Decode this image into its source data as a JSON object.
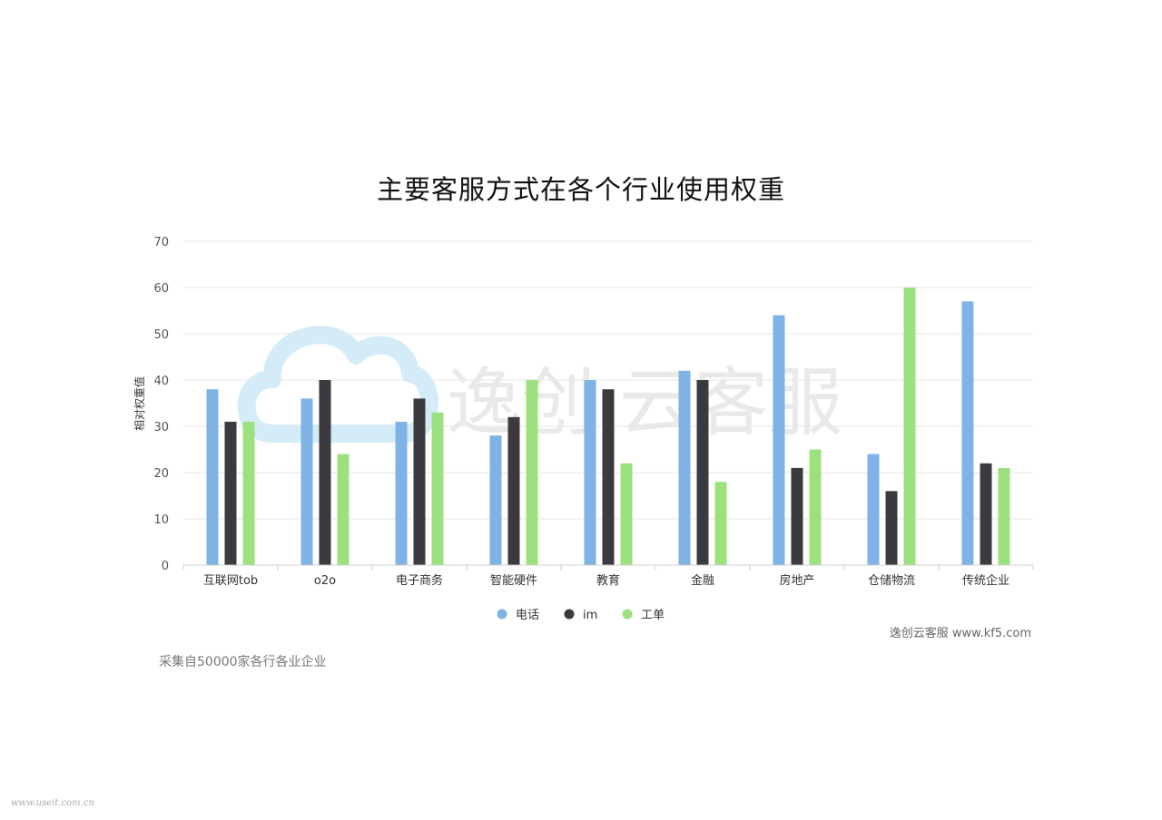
{
  "chart_data": {
    "type": "bar",
    "title": "主要客服方式在各个行业使用权重",
    "ylabel": "相对权重值",
    "xlabel": "",
    "ylim": [
      0,
      70
    ],
    "yticks": [
      0,
      10,
      20,
      30,
      40,
      50,
      60,
      70
    ],
    "grid": true,
    "legend_position": "bottom-center",
    "categories": [
      "互联网tob",
      "o2o",
      "电子商务",
      "智能硬件",
      "教育",
      "金融",
      "房地产",
      "仓储物流",
      "传统企业"
    ],
    "series": [
      {
        "name": "电话",
        "color": "#7fb2e5",
        "values": [
          38,
          36,
          31,
          28,
          40,
          42,
          54,
          24,
          57
        ]
      },
      {
        "name": "im",
        "color": "#3b3b3f",
        "values": [
          31,
          40,
          36,
          32,
          38,
          40,
          21,
          16,
          22
        ]
      },
      {
        "name": "工单",
        "color": "#9de07e",
        "values": [
          31,
          24,
          33,
          40,
          22,
          18,
          25,
          60,
          21
        ]
      }
    ]
  },
  "watermark": {
    "text": "逸创·云客服",
    "icon": "cloud-icon",
    "color": "#cfe9f6"
  },
  "credit": "逸创云客服 www.kf5.com",
  "note": "采集自50000家各行各业企业",
  "site_watermark": "www.useit.com.cn"
}
